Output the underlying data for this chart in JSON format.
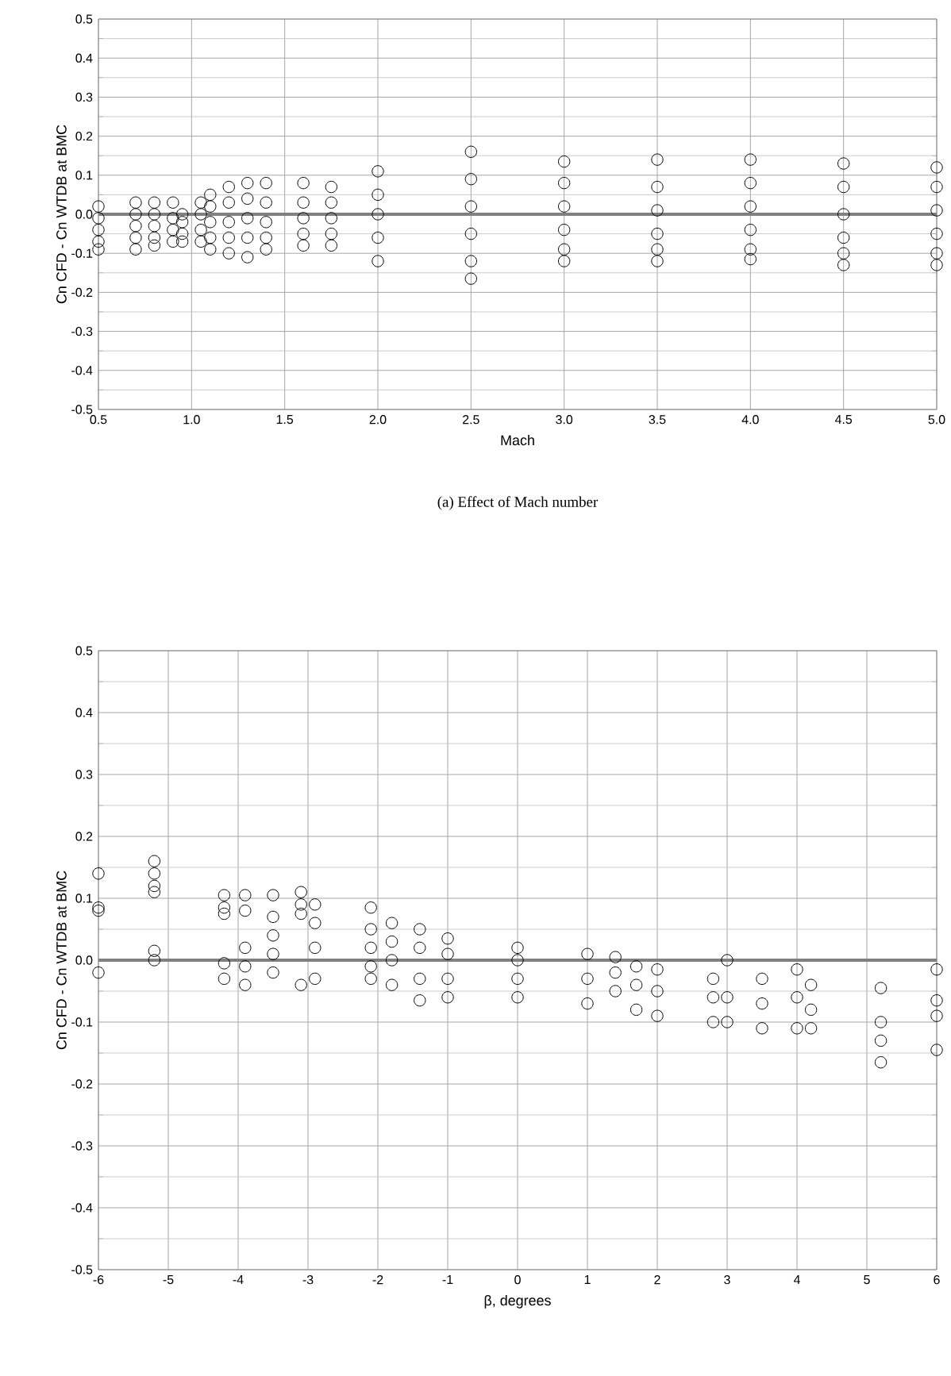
{
  "chart_data": [
    {
      "type": "scatter",
      "xlabel": "Mach",
      "ylabel": "Cn CFD - Cn WTDB at BMC",
      "annotations": [
        "(a) Effect of Mach number"
      ],
      "xlim": [
        0.5,
        5.0
      ],
      "ylim": [
        -0.5,
        0.5
      ],
      "xticks": [
        0.5,
        {
          "value": 1.0,
          "label": "1.0"
        },
        1.5,
        {
          "value": 2.0,
          "label": "2.0"
        },
        2.5,
        {
          "value": 3.0,
          "label": "3.0"
        },
        3.5,
        {
          "value": 4.0,
          "label": "4.0"
        },
        4.5,
        {
          "value": 5.0,
          "label": "5.0"
        }
      ],
      "yticks": [
        {
          "value": -0.5,
          "label": "-0.5"
        },
        {
          "value": -0.4,
          "label": "-0.4"
        },
        {
          "value": -0.3,
          "label": "-0.3"
        },
        {
          "value": -0.2,
          "label": "-0.2"
        },
        {
          "value": -0.1,
          "label": "-0.1"
        },
        {
          "value": 0.0,
          "label": "0.0"
        },
        {
          "value": 0.1,
          "label": "0.1"
        },
        {
          "value": 0.2,
          "label": "0.2"
        },
        {
          "value": 0.3,
          "label": "0.3"
        },
        {
          "value": 0.4,
          "label": "0.4"
        },
        {
          "value": 0.5,
          "label": "0.5"
        }
      ],
      "grid": true,
      "marker": "circle",
      "ref_lines": [
        {
          "axis": "y",
          "value": 0,
          "color": "#808080"
        }
      ],
      "series": [
        {
          "color": "#000000",
          "x": [
            0.5,
            0.5,
            0.5,
            0.5,
            0.5,
            0.7,
            0.7,
            0.7,
            0.7,
            0.7,
            0.8,
            0.8,
            0.8,
            0.8,
            0.8,
            0.9,
            0.9,
            0.9,
            0.9,
            0.95,
            0.95,
            0.95,
            0.95,
            1.05,
            1.05,
            1.05,
            1.05,
            1.1,
            1.1,
            1.1,
            1.1,
            1.1,
            1.2,
            1.2,
            1.2,
            1.2,
            1.2,
            1.3,
            1.3,
            1.3,
            1.3,
            1.3,
            1.4,
            1.4,
            1.4,
            1.4,
            1.4,
            1.6,
            1.6,
            1.6,
            1.6,
            1.6,
            1.75,
            1.75,
            1.75,
            1.75,
            1.75,
            2.0,
            2.0,
            2.0,
            2.0,
            2.0,
            2.5,
            2.5,
            2.5,
            2.5,
            2.5,
            2.5,
            3.0,
            3.0,
            3.0,
            3.0,
            3.0,
            3.0,
            3.5,
            3.5,
            3.5,
            3.5,
            3.5,
            3.5,
            4.0,
            4.0,
            4.0,
            4.0,
            4.0,
            4.0,
            4.5,
            4.5,
            4.5,
            4.5,
            4.5,
            4.5,
            5.0,
            5.0,
            5.0,
            5.0,
            5.0,
            5.0
          ],
          "values": [
            0.02,
            -0.01,
            -0.04,
            -0.07,
            -0.09,
            0.03,
            0.0,
            -0.03,
            -0.06,
            -0.09,
            0.03,
            0.0,
            -0.03,
            -0.06,
            -0.08,
            0.03,
            -0.01,
            -0.04,
            -0.07,
            0.0,
            -0.02,
            -0.05,
            -0.07,
            0.03,
            0.0,
            -0.04,
            -0.07,
            0.05,
            0.02,
            -0.02,
            -0.06,
            -0.09,
            0.07,
            0.03,
            -0.02,
            -0.06,
            -0.1,
            0.08,
            0.04,
            -0.01,
            -0.06,
            -0.11,
            0.08,
            0.03,
            -0.02,
            -0.06,
            -0.09,
            0.08,
            0.03,
            -0.01,
            -0.05,
            -0.08,
            0.07,
            0.03,
            -0.01,
            -0.05,
            -0.08,
            0.11,
            0.05,
            0.0,
            -0.06,
            -0.12,
            0.16,
            0.09,
            0.02,
            -0.05,
            -0.12,
            -0.165,
            0.135,
            0.08,
            0.02,
            -0.04,
            -0.09,
            -0.12,
            0.14,
            0.07,
            0.01,
            -0.05,
            -0.09,
            -0.12,
            0.14,
            0.08,
            0.02,
            -0.04,
            -0.09,
            -0.115,
            0.13,
            0.07,
            0.0,
            -0.06,
            -0.1,
            -0.13,
            0.12,
            0.07,
            0.01,
            -0.05,
            -0.1,
            -0.13
          ]
        }
      ]
    },
    {
      "type": "scatter",
      "xlabel": "β, degrees",
      "ylabel": "Cn CFD - Cn WTDB at BMC",
      "xlim": [
        -6,
        6
      ],
      "ylim": [
        -0.5,
        0.5
      ],
      "xticks": [
        -6,
        -5,
        -4,
        -3,
        -2,
        -1,
        0,
        1,
        2,
        3,
        4,
        5,
        6
      ],
      "yticks": [
        {
          "value": -0.5,
          "label": "-0.5"
        },
        {
          "value": -0.4,
          "label": "-0.4"
        },
        {
          "value": -0.3,
          "label": "-0.3"
        },
        {
          "value": -0.2,
          "label": "-0.2"
        },
        {
          "value": -0.1,
          "label": "-0.1"
        },
        {
          "value": 0.0,
          "label": "0.0"
        },
        {
          "value": 0.1,
          "label": "0.1"
        },
        {
          "value": 0.2,
          "label": "0.2"
        },
        {
          "value": 0.3,
          "label": "0.3"
        },
        {
          "value": 0.4,
          "label": "0.4"
        },
        {
          "value": 0.5,
          "label": "0.5"
        }
      ],
      "grid": true,
      "marker": "circle",
      "ref_lines": [
        {
          "axis": "y",
          "value": 0,
          "color": "#808080"
        }
      ],
      "series": [
        {
          "color": "#000000",
          "x": [
            -6,
            -6,
            -6,
            -6,
            -5.2,
            -5.2,
            -5.2,
            -5.2,
            -5.2,
            -5.2,
            -4.2,
            -4.2,
            -4.2,
            -4.2,
            -4.2,
            -3.9,
            -3.9,
            -3.9,
            -3.9,
            -3.9,
            -3.5,
            -3.5,
            -3.5,
            -3.5,
            -3.5,
            -3.1,
            -3.1,
            -3.1,
            -3.1,
            -2.9,
            -2.9,
            -2.9,
            -2.9,
            -2.1,
            -2.1,
            -2.1,
            -2.1,
            -2.1,
            -1.8,
            -1.8,
            -1.8,
            -1.8,
            -1.4,
            -1.4,
            -1.4,
            -1.4,
            -1,
            -1,
            -1,
            -1,
            0,
            0,
            0,
            0,
            1,
            1,
            1,
            1.4,
            1.4,
            1.4,
            1.7,
            1.7,
            1.7,
            2,
            2,
            2,
            2.8,
            2.8,
            2.8,
            3,
            3,
            3,
            3.5,
            3.5,
            3.5,
            4,
            4,
            4,
            4.2,
            4.2,
            4.2,
            5.2,
            5.2,
            5.2,
            5.2,
            6,
            6,
            6,
            6
          ],
          "values": [
            0.14,
            0.085,
            0.08,
            -0.02,
            0.16,
            0.14,
            0.12,
            0.11,
            0.015,
            0.0,
            0.105,
            0.085,
            0.075,
            -0.005,
            -0.03,
            0.105,
            0.08,
            0.02,
            -0.01,
            -0.04,
            0.105,
            0.07,
            0.04,
            0.01,
            -0.02,
            0.11,
            0.09,
            0.075,
            -0.04,
            0.09,
            0.06,
            0.02,
            -0.03,
            0.085,
            0.05,
            0.02,
            -0.01,
            -0.03,
            0.06,
            0.03,
            0.0,
            -0.04,
            0.05,
            0.02,
            -0.03,
            -0.065,
            0.035,
            0.01,
            -0.03,
            -0.06,
            0.02,
            0.0,
            -0.03,
            -0.06,
            0.01,
            -0.03,
            -0.07,
            0.005,
            -0.02,
            -0.05,
            -0.01,
            -0.04,
            -0.08,
            -0.015,
            -0.05,
            -0.09,
            -0.03,
            -0.06,
            -0.1,
            0.0,
            -0.06,
            -0.1,
            -0.03,
            -0.07,
            -0.11,
            -0.015,
            -0.06,
            -0.11,
            -0.04,
            -0.08,
            -0.11,
            -0.045,
            -0.1,
            -0.13,
            -0.165,
            -0.015,
            -0.065,
            -0.09,
            -0.145
          ]
        }
      ]
    }
  ]
}
